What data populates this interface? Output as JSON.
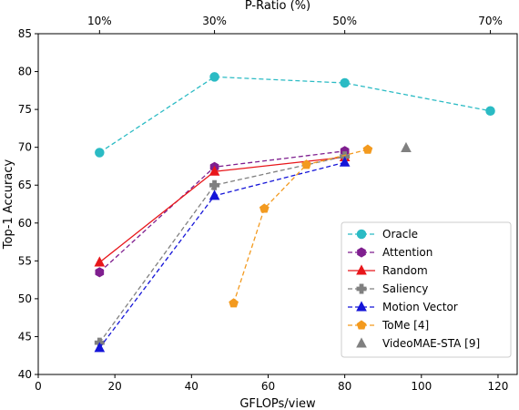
{
  "chart_data": {
    "type": "line",
    "title": "",
    "xlabel": "GFLOPs/view",
    "ylabel": "Top-1 Accuracy",
    "top_axis_label": "P-Ratio (%)",
    "xlim": [
      0,
      125
    ],
    "ylim": [
      40,
      85
    ],
    "xticks": [
      "0",
      "20",
      "40",
      "60",
      "80",
      "100",
      "120"
    ],
    "yticks": [
      "40",
      "45",
      "50",
      "55",
      "60",
      "65",
      "70",
      "75",
      "80",
      "85"
    ],
    "top_ticks": [
      {
        "label": "10%",
        "gflops": 16
      },
      {
        "label": "30%",
        "gflops": 46
      },
      {
        "label": "50%",
        "gflops": 80
      },
      {
        "label": "70%",
        "gflops": 118
      }
    ],
    "grid": false,
    "legend_position": "lower right",
    "series": [
      {
        "name": "Oracle",
        "color": "#2bbbc4",
        "marker": "circle",
        "linestyle": "dashed",
        "x": [
          16,
          46,
          80,
          118
        ],
        "y": [
          69.3,
          79.3,
          78.5,
          74.8
        ]
      },
      {
        "name": "Attention",
        "color": "#7f1f8f",
        "marker": "hexagon",
        "linestyle": "dashed",
        "x": [
          16,
          46,
          80
        ],
        "y": [
          53.5,
          67.4,
          69.5
        ]
      },
      {
        "name": "Random",
        "color": "#e8161a",
        "marker": "triangle",
        "linestyle": "solid",
        "x": [
          16,
          46,
          80
        ],
        "y": [
          54.8,
          66.8,
          68.7
        ]
      },
      {
        "name": "Saliency",
        "color": "#808080",
        "marker": "plus",
        "linestyle": "dashed",
        "x": [
          16,
          46,
          80
        ],
        "y": [
          44.2,
          65.0,
          68.8
        ]
      },
      {
        "name": "Motion Vector",
        "color": "#1515d8",
        "marker": "triangle",
        "linestyle": "dashed",
        "x": [
          16,
          46,
          80
        ],
        "y": [
          43.5,
          63.6,
          68.0
        ]
      },
      {
        "name": "ToMe [4]",
        "color": "#f39a1f",
        "marker": "pentagon",
        "linestyle": "dashed",
        "x": [
          51,
          59,
          70,
          86
        ],
        "y": [
          49.4,
          61.9,
          67.7,
          69.7
        ]
      },
      {
        "name": "VideoMAE-STA [9]",
        "color": "#808080",
        "marker": "triangle",
        "linestyle": "none",
        "x": [
          96
        ],
        "y": [
          69.9
        ]
      }
    ]
  }
}
